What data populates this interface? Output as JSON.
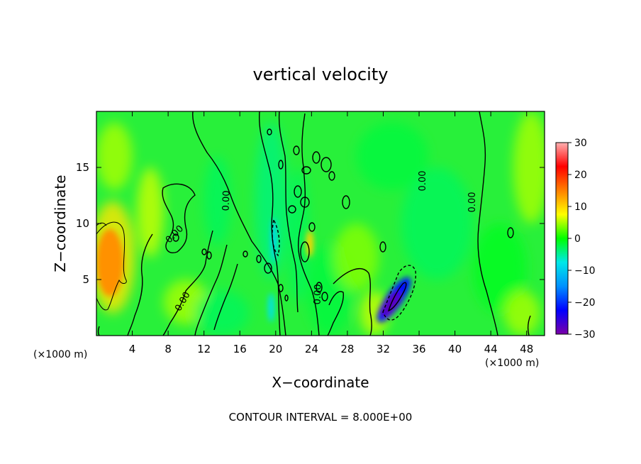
{
  "chart_data": {
    "type": "heatmap",
    "title": "vertical velocity",
    "xlabel": "X−coordinate",
    "ylabel": "Z−coordinate",
    "x_unit": "(×1000 m)",
    "z_unit": "(×1000 m)",
    "xlim": [
      0,
      50
    ],
    "ylim": [
      0,
      20
    ],
    "x_ticks": [
      4,
      8,
      12,
      16,
      20,
      24,
      28,
      32,
      36,
      40,
      44,
      48
    ],
    "y_ticks": [
      5,
      10,
      15
    ],
    "colorbar": {
      "range": [
        -30,
        30
      ],
      "ticks": [
        30,
        20,
        10,
        0,
        -10,
        -20,
        -30
      ],
      "tick_labels": [
        "30",
        "20",
        "10",
        "0",
        "−10",
        "−20",
        "−30"
      ],
      "colors": [
        "#7b00a8",
        "#0000ff",
        "#0090ff",
        "#00e8e8",
        "#00ff00",
        "#ffff00",
        "#ff8000",
        "#ff0000",
        "#ffb0b0"
      ]
    },
    "contour_interval": "CONTOUR INTERVAL = 8.000E+00",
    "contour_labels": [
      "0.00",
      "0.00",
      "0.00",
      "0.00",
      "0.00",
      "0.00"
    ],
    "features": [
      {
        "kind": "updraft",
        "x": 1.5,
        "z": 6.5,
        "value": 14
      },
      {
        "kind": "updraft",
        "x": 23.8,
        "z": 8.2,
        "value": 10
      },
      {
        "kind": "downdraft",
        "x": 33.2,
        "z": 3.2,
        "value": -22
      },
      {
        "kind": "downdraft",
        "x": 19.8,
        "z": 8.5,
        "value": -9
      },
      {
        "kind": "downdraft",
        "x": 19.5,
        "z": 2.5,
        "value": -8
      }
    ]
  }
}
